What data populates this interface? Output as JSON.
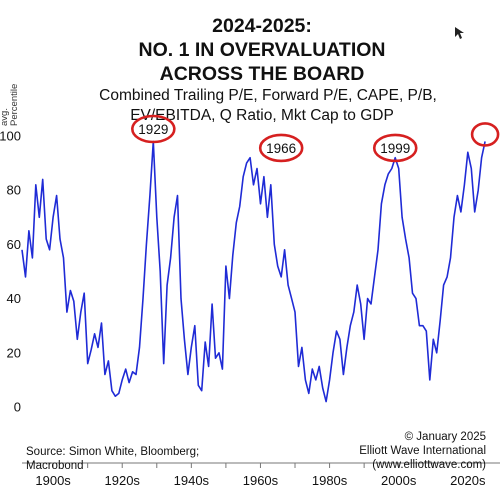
{
  "chart_data": {
    "type": "line",
    "title_lines": [
      "2024-2025:",
      "NO. 1 IN OVERVALUATION",
      "ACROSS THE BOARD"
    ],
    "subtitle_lines": [
      "Combined Trailing P/E, Forward P/E, CAPE, P/B,",
      "EV/EBITDA, Q Ratio, Mkt Cap to GDP"
    ],
    "ylabel_lines": [
      "avg.",
      "Percentile"
    ],
    "ylim": [
      0,
      100
    ],
    "yticks": [
      0,
      20,
      40,
      60,
      80,
      100
    ],
    "xlim": [
      1891,
      2027
    ],
    "xtick_labels": [
      {
        "year": 1900,
        "label": "1900s"
      },
      {
        "year": 1920,
        "label": "1920s"
      },
      {
        "year": 1940,
        "label": "1940s"
      },
      {
        "year": 1960,
        "label": "1960s"
      },
      {
        "year": 1980,
        "label": "1980s"
      },
      {
        "year": 2000,
        "label": "2000s"
      },
      {
        "year": 2020,
        "label": "2020s"
      }
    ],
    "line_color": "#1f2bd6",
    "annotation_color": "#d62020",
    "annotations": [
      {
        "label": "1929",
        "year": 1929,
        "value": 100
      },
      {
        "label": "1966",
        "year": 1966,
        "value": 93
      },
      {
        "label": "1999",
        "year": 1999,
        "value": 93
      },
      {
        "label": "",
        "year": 2025,
        "value": 98
      }
    ],
    "x": [
      1891,
      1892,
      1893,
      1894,
      1895,
      1896,
      1897,
      1898,
      1899,
      1900,
      1901,
      1902,
      1903,
      1904,
      1905,
      1906,
      1907,
      1908,
      1909,
      1910,
      1911,
      1912,
      1913,
      1914,
      1915,
      1916,
      1917,
      1918,
      1919,
      1920,
      1921,
      1922,
      1923,
      1924,
      1925,
      1926,
      1927,
      1928,
      1929,
      1930,
      1931,
      1932,
      1933,
      1934,
      1935,
      1936,
      1937,
      1938,
      1939,
      1940,
      1941,
      1942,
      1943,
      1944,
      1945,
      1946,
      1947,
      1948,
      1949,
      1950,
      1951,
      1952,
      1953,
      1954,
      1955,
      1956,
      1957,
      1958,
      1959,
      1960,
      1961,
      1962,
      1963,
      1964,
      1965,
      1966,
      1967,
      1968,
      1969,
      1970,
      1971,
      1972,
      1973,
      1974,
      1975,
      1976,
      1977,
      1978,
      1979,
      1980,
      1981,
      1982,
      1983,
      1984,
      1985,
      1986,
      1987,
      1988,
      1989,
      1990,
      1991,
      1992,
      1993,
      1994,
      1995,
      1996,
      1997,
      1998,
      1999,
      2000,
      2001,
      2002,
      2003,
      2004,
      2005,
      2006,
      2007,
      2008,
      2009,
      2010,
      2011,
      2012,
      2013,
      2014,
      2015,
      2016,
      2017,
      2018,
      2019,
      2020,
      2021,
      2022,
      2023,
      2024,
      2025
    ],
    "values": [
      58,
      48,
      65,
      55,
      82,
      70,
      84,
      62,
      58,
      70,
      78,
      62,
      55,
      35,
      43,
      39,
      25,
      35,
      42,
      16,
      21,
      27,
      22,
      31,
      12,
      17,
      6,
      4,
      5,
      10,
      14,
      9,
      13,
      12,
      22,
      40,
      60,
      78,
      98,
      70,
      50,
      16,
      45,
      55,
      70,
      78,
      40,
      25,
      12,
      22,
      30,
      8,
      6,
      24,
      15,
      38,
      18,
      20,
      14,
      52,
      40,
      56,
      68,
      74,
      85,
      90,
      92,
      82,
      88,
      75,
      85,
      70,
      82,
      60,
      52,
      48,
      58,
      45,
      40,
      35,
      15,
      22,
      10,
      5,
      14,
      10,
      15,
      7,
      2,
      10,
      20,
      28,
      25,
      12,
      22,
      30,
      35,
      45,
      38,
      25,
      40,
      38,
      48,
      58,
      75,
      82,
      86,
      88,
      92,
      88,
      70,
      62,
      55,
      42,
      40,
      30,
      30,
      28,
      10,
      25,
      20,
      32,
      45,
      48,
      55,
      70,
      78,
      72,
      82,
      94,
      88,
      72,
      80,
      92,
      98
    ]
  }
}
